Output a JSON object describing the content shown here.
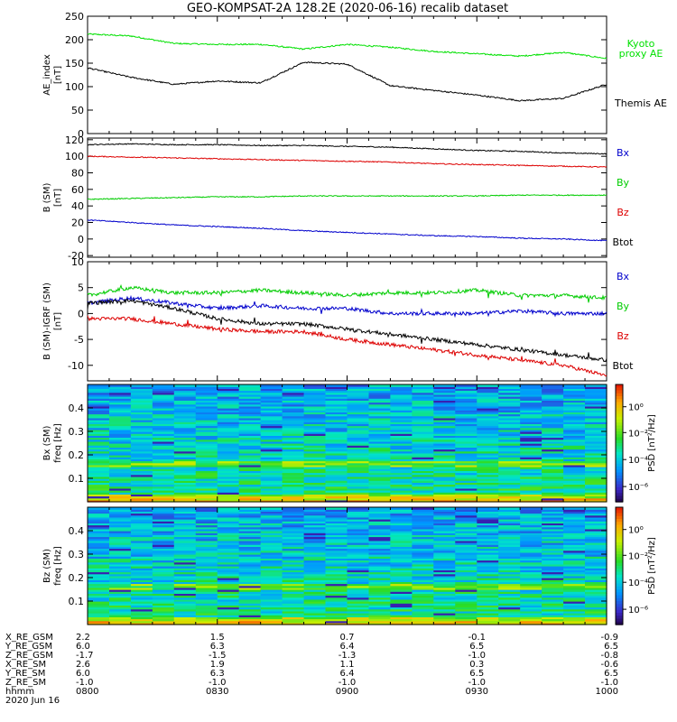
{
  "title": "GEO-KOMPSAT-2A 128.2E (2020-06-16) recalib dataset",
  "panels": [
    {
      "id": "ae",
      "ylabel": [
        "AE_index",
        "[nT]"
      ],
      "yticks": [
        "0",
        "50",
        "100",
        "150",
        "200",
        "250"
      ],
      "legend": [
        {
          "text": "Kyoto",
          "color": "#00e000"
        },
        {
          "text": "proxy AE",
          "color": "#00e000"
        },
        {
          "text": "Themis AE",
          "color": "#000000"
        }
      ]
    },
    {
      "id": "b",
      "ylabel": [
        "B (SM)",
        "[nT]"
      ],
      "yticks": [
        "-20",
        "0",
        "20",
        "40",
        "60",
        "80",
        "100",
        "120"
      ],
      "legend": [
        {
          "text": "Bx",
          "color": "#0000cc"
        },
        {
          "text": "By",
          "color": "#00cc00"
        },
        {
          "text": "Bz",
          "color": "#dd0000"
        },
        {
          "text": "Btot",
          "color": "#000000"
        }
      ]
    },
    {
      "id": "db",
      "ylabel": [
        "B (SM)-IGRF (SM)",
        "[nT]"
      ],
      "yticks": [
        "-10",
        "-5",
        "0",
        "5",
        "10"
      ],
      "legend": [
        {
          "text": "Bx",
          "color": "#0000cc"
        },
        {
          "text": "By",
          "color": "#00cc00"
        },
        {
          "text": "Bz",
          "color": "#dd0000"
        },
        {
          "text": "Btot",
          "color": "#000000"
        }
      ]
    },
    {
      "id": "specx",
      "ylabel": [
        "Bx (SM)",
        "freq [Hz]"
      ],
      "yticks": [
        "0.1",
        "0.2",
        "0.3",
        "0.4"
      ],
      "cbar_label": "PSD [nT²/Hz]",
      "cbar_ticks": [
        "10⁰",
        "10⁻²",
        "10⁻⁴",
        "10⁻⁶"
      ]
    },
    {
      "id": "specz",
      "ylabel": [
        "Bz (SM)",
        "freq [Hz]"
      ],
      "yticks": [
        "0.1",
        "0.2",
        "0.3",
        "0.4"
      ],
      "cbar_label": "PSD [nT²/Hz]",
      "cbar_ticks": [
        "10⁰",
        "10⁻²",
        "10⁻⁴",
        "10⁻⁶"
      ]
    }
  ],
  "ephemeris": {
    "labels": [
      "X_RE_GSM",
      "Y_RE_GSM",
      "Z_RE_GSM",
      "X_RE_SM",
      "Y_RE_SM",
      "Z_RE_SM",
      "hhmm",
      "2020 Jun 16"
    ],
    "columns": [
      [
        "2.2",
        "6.0",
        "-1.7",
        "2.6",
        "6.0",
        "-1.0",
        "0800"
      ],
      [
        "1.5",
        "6.3",
        "-1.5",
        "1.9",
        "6.3",
        "-1.0",
        "0830"
      ],
      [
        "0.7",
        "6.4",
        "-1.3",
        "1.1",
        "6.4",
        "-1.0",
        "0900"
      ],
      [
        "-0.1",
        "6.5",
        "-1.0",
        "0.3",
        "6.5",
        "-1.0",
        "0930"
      ],
      [
        "-0.9",
        "6.5",
        "-0.8",
        "-0.6",
        "6.5",
        "-1.0",
        "1000"
      ]
    ]
  },
  "chart_data": [
    {
      "type": "line",
      "title": "GEO-KOMPSAT-2A 128.2E (2020-06-16) recalib dataset",
      "xlabel": "hhmm",
      "x": [
        "0800",
        "0810",
        "0820",
        "0830",
        "0840",
        "0850",
        "0900",
        "0910",
        "0920",
        "0930",
        "0940",
        "0950",
        "1000"
      ],
      "ylabel": "AE_index [nT]",
      "ylim": [
        0,
        250
      ],
      "series": [
        {
          "name": "Kyoto proxy AE",
          "color": "#00e000",
          "values": [
            212,
            208,
            192,
            190,
            190,
            180,
            190,
            184,
            175,
            170,
            165,
            173,
            160
          ]
        },
        {
          "name": "Themis AE",
          "color": "#000000",
          "values": [
            140,
            120,
            105,
            112,
            108,
            152,
            148,
            102,
            92,
            82,
            70,
            75,
            105
          ]
        }
      ]
    },
    {
      "type": "line",
      "x": [
        "0800",
        "0810",
        "0820",
        "0830",
        "0840",
        "0850",
        "0900",
        "0910",
        "0920",
        "0930",
        "0940",
        "0950",
        "1000"
      ],
      "ylabel": "B (SM) [nT]",
      "ylim": [
        -22,
        122
      ],
      "series": [
        {
          "name": "Btot",
          "color": "#000000",
          "values": [
            114,
            115,
            114,
            114,
            113,
            113,
            112,
            111,
            109,
            107,
            106,
            104,
            103
          ]
        },
        {
          "name": "Bz",
          "color": "#dd0000",
          "values": [
            100,
            99,
            98,
            97,
            96,
            95,
            94,
            93,
            91,
            90,
            89,
            88,
            87
          ]
        },
        {
          "name": "By",
          "color": "#00cc00",
          "values": [
            48,
            49,
            50,
            51,
            51,
            52,
            52,
            52,
            52,
            52,
            53,
            53,
            53
          ]
        },
        {
          "name": "Bx",
          "color": "#0000cc",
          "values": [
            23,
            20,
            17,
            15,
            13,
            10,
            8,
            6,
            4,
            3,
            1,
            0,
            -2
          ]
        }
      ]
    },
    {
      "type": "line",
      "x": [
        "0800",
        "0810",
        "0820",
        "0830",
        "0840",
        "0850",
        "0900",
        "0910",
        "0920",
        "0930",
        "0940",
        "0950",
        "1000"
      ],
      "ylabel": "B (SM)-IGRF (SM) [nT]",
      "ylim": [
        -13,
        10
      ],
      "series": [
        {
          "name": "By",
          "color": "#00cc00",
          "values": [
            3.5,
            5,
            4,
            4,
            4.5,
            4,
            3.5,
            4,
            4,
            4.5,
            3.5,
            3.5,
            3
          ]
        },
        {
          "name": "Bx",
          "color": "#0000cc",
          "values": [
            2,
            3,
            2,
            1,
            1.5,
            1,
            1,
            0,
            0,
            0,
            0.5,
            0,
            0
          ]
        },
        {
          "name": "Btot",
          "color": "#000000",
          "values": [
            2,
            2.5,
            1,
            -1,
            -2,
            -2,
            -3,
            -4,
            -5,
            -6,
            -7,
            -8,
            -9
          ]
        },
        {
          "name": "Bz",
          "color": "#dd0000",
          "values": [
            -1,
            -1,
            -2,
            -3,
            -3.5,
            -3.5,
            -5,
            -6,
            -7,
            -8,
            -9,
            -10,
            -12
          ]
        }
      ]
    },
    {
      "type": "heatmap",
      "ylabel": "Bx (SM) freq [Hz]",
      "ylim": [
        0,
        0.5
      ],
      "colorbar": "PSD [nT²/Hz]",
      "note_bands": "strong power below 0.03 Hz; enhanced band near 0.16 Hz"
    },
    {
      "type": "heatmap",
      "ylabel": "Bz (SM) freq [Hz]",
      "ylim": [
        0,
        0.5
      ],
      "colorbar": "PSD [nT²/Hz]",
      "note_bands": "strong power below 0.03 Hz; enhanced band near 0.16 Hz"
    }
  ]
}
